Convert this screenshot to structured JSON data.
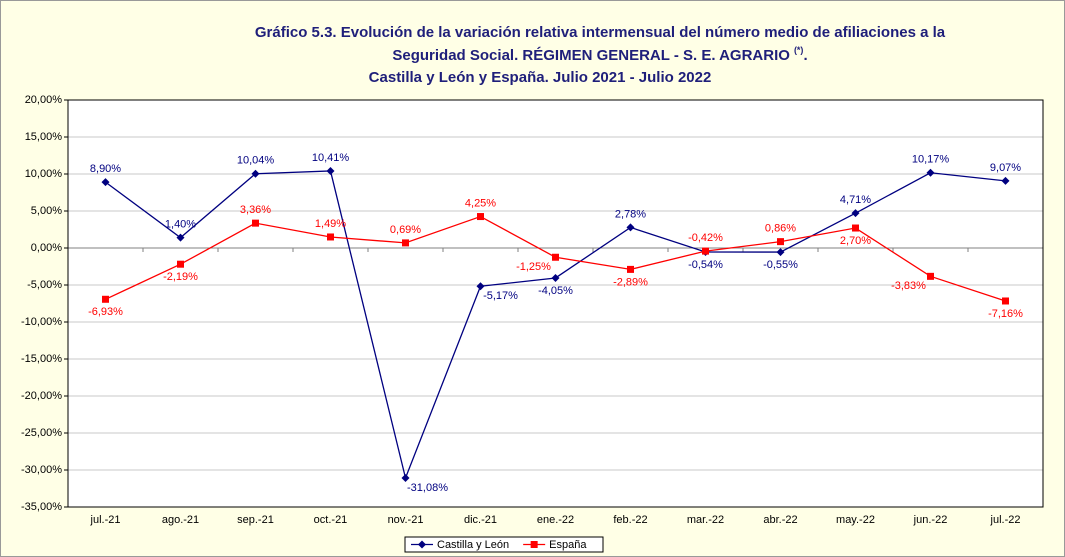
{
  "chart_data": {
    "type": "line",
    "title": {
      "lines": [
        "Gráfico 5.3. Evolución de la variación relativa intermensual del número medio de afiliaciones a la",
        "Seguridad Social. RÉGIMEN GENERAL - S. E. AGRARIO",
        "Castilla y León y España. Julio 2021 - Julio 2022"
      ],
      "note_mark": "(*)",
      "note_end": "."
    },
    "categories": [
      "jul.-21",
      "ago.-21",
      "sep.-21",
      "oct.-21",
      "nov.-21",
      "dic.-21",
      "ene.-22",
      "feb.-22",
      "mar.-22",
      "abr.-22",
      "may.-22",
      "jun.-22",
      "jul.-22"
    ],
    "series": [
      {
        "name": "Castilla y León",
        "color": "#000080",
        "marker": "diamond",
        "values": [
          8.9,
          1.4,
          10.04,
          10.41,
          -31.08,
          -5.17,
          -4.05,
          2.78,
          -0.54,
          -0.55,
          4.71,
          10.17,
          9.07
        ],
        "value_labels": [
          "8,90%",
          "1,40%",
          "10,04%",
          "10,41%",
          "-31,08%",
          "-5,17%",
          "-4,05%",
          "2,78%",
          "-0,54%",
          "-0,55%",
          "4,71%",
          "10,17%",
          "9,07%"
        ]
      },
      {
        "name": "España",
        "color": "#ff0000",
        "marker": "square",
        "values": [
          -6.93,
          -2.19,
          3.36,
          1.49,
          0.69,
          4.25,
          -1.25,
          -2.89,
          -0.42,
          0.86,
          2.7,
          -3.83,
          -7.16
        ],
        "value_labels": [
          "-6,93%",
          "-2,19%",
          "3,36%",
          "1,49%",
          "0,69%",
          "4,25%",
          "-1,25%",
          "-2,89%",
          "-0,42%",
          "0,86%",
          "2,70%",
          "-3,83%",
          "-7,16%"
        ]
      }
    ],
    "ylim": [
      -35,
      20
    ],
    "yticks": [
      {
        "value": -35,
        "label": "-35,00%"
      },
      {
        "value": -30,
        "label": "-30,00%"
      },
      {
        "value": -25,
        "label": "-25,00%"
      },
      {
        "value": -20,
        "label": "-20,00%"
      },
      {
        "value": -15,
        "label": "-15,00%"
      },
      {
        "value": -10,
        "label": "-10,00%"
      },
      {
        "value": -5,
        "label": "-5,00%"
      },
      {
        "value": 0,
        "label": "0,00%"
      },
      {
        "value": 5,
        "label": "5,00%"
      },
      {
        "value": 10,
        "label": "10,00%"
      },
      {
        "value": 15,
        "label": "15,00%"
      },
      {
        "value": 20,
        "label": "20,00%"
      }
    ],
    "grid": true,
    "legend": "bottom"
  }
}
